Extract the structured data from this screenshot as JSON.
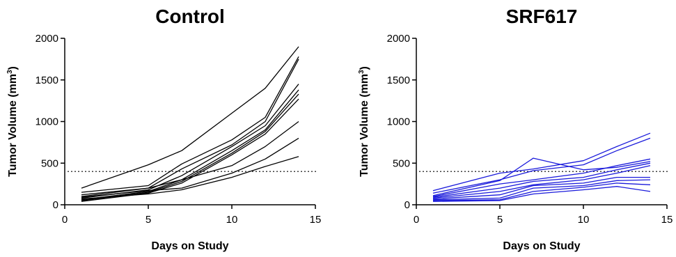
{
  "chart_data": [
    {
      "type": "line",
      "title": "Control",
      "xlabel": "Days on Study",
      "ylabel": "Tumor Volume (mm³)",
      "ylabel_base": "Tumor Volume (mm",
      "ylabel_sup": "3",
      "ylabel_end": ")",
      "xlim": [
        0,
        15
      ],
      "ylim": [
        0,
        2000
      ],
      "xticks": [
        0,
        5,
        10,
        15
      ],
      "yticks": [
        0,
        500,
        1000,
        1500,
        2000
      ],
      "reference_line": {
        "y": 400,
        "style": "dotted"
      },
      "line_color": "#000000",
      "legend": "none",
      "grid": false,
      "series": [
        {
          "x": [
            1,
            5,
            7,
            10,
            12,
            14
          ],
          "y": [
            200,
            480,
            650,
            1100,
            1400,
            1900
          ]
        },
        {
          "x": [
            1,
            5,
            7,
            10,
            12,
            14
          ],
          "y": [
            150,
            230,
            490,
            780,
            1050,
            1780
          ]
        },
        {
          "x": [
            1,
            5,
            7,
            10,
            12,
            14
          ],
          "y": [
            100,
            200,
            430,
            720,
            1000,
            1750
          ]
        },
        {
          "x": [
            1,
            5,
            7,
            10,
            12,
            14
          ],
          "y": [
            80,
            180,
            350,
            700,
            950,
            1450
          ]
        },
        {
          "x": [
            1,
            5,
            7,
            10,
            12,
            14
          ],
          "y": [
            60,
            160,
            300,
            650,
            900,
            1380
          ]
        },
        {
          "x": [
            1,
            5,
            7,
            10,
            12,
            14
          ],
          "y": [
            50,
            150,
            280,
            620,
            880,
            1330
          ]
        },
        {
          "x": [
            1,
            5,
            7,
            10,
            12,
            14
          ],
          "y": [
            40,
            140,
            260,
            600,
            850,
            1270
          ]
        },
        {
          "x": [
            1,
            5,
            7,
            10,
            12,
            14
          ],
          "y": [
            120,
            200,
            300,
            470,
            700,
            1000
          ]
        },
        {
          "x": [
            1,
            5,
            7,
            10,
            12,
            14
          ],
          "y": [
            90,
            170,
            200,
            380,
            550,
            800
          ]
        },
        {
          "x": [
            1,
            5,
            7,
            10,
            12,
            14
          ],
          "y": [
            70,
            130,
            180,
            330,
            460,
            580
          ]
        }
      ]
    },
    {
      "type": "line",
      "title": "SRF617",
      "xlabel": "Days on Study",
      "ylabel": "Tumor Volume (mm³)",
      "ylabel_base": "Tumor Volume (mm",
      "ylabel_sup": "3",
      "ylabel_end": ")",
      "xlim": [
        0,
        15
      ],
      "ylim": [
        0,
        2000
      ],
      "xticks": [
        0,
        5,
        10,
        15
      ],
      "yticks": [
        0,
        500,
        1000,
        1500,
        2000
      ],
      "reference_line": {
        "y": 400,
        "style": "dotted"
      },
      "line_color": "#1a1adb",
      "legend": "none",
      "grid": false,
      "series": [
        {
          "x": [
            1,
            5,
            7,
            10,
            12,
            14
          ],
          "y": [
            170,
            380,
            430,
            530,
            700,
            860
          ]
        },
        {
          "x": [
            1,
            5,
            7,
            10,
            12,
            14
          ],
          "y": [
            140,
            300,
            410,
            480,
            650,
            800
          ]
        },
        {
          "x": [
            1,
            5,
            7,
            10,
            12,
            14
          ],
          "y": [
            110,
            290,
            560,
            420,
            450,
            520
          ]
        },
        {
          "x": [
            1,
            5,
            7,
            10,
            12,
            14
          ],
          "y": [
            100,
            250,
            300,
            380,
            470,
            550
          ]
        },
        {
          "x": [
            1,
            5,
            7,
            10,
            12,
            14
          ],
          "y": [
            90,
            200,
            280,
            330,
            420,
            500
          ]
        },
        {
          "x": [
            1,
            5,
            7,
            10,
            12,
            14
          ],
          "y": [
            80,
            160,
            240,
            300,
            380,
            470
          ]
        },
        {
          "x": [
            1,
            5,
            7,
            10,
            12,
            14
          ],
          "y": [
            70,
            120,
            230,
            260,
            330,
            330
          ]
        },
        {
          "x": [
            1,
            5,
            7,
            10,
            12,
            14
          ],
          "y": [
            60,
            80,
            200,
            230,
            290,
            300
          ]
        },
        {
          "x": [
            1,
            5,
            7,
            10,
            12,
            14
          ],
          "y": [
            50,
            60,
            160,
            210,
            260,
            240
          ]
        },
        {
          "x": [
            1,
            5,
            7,
            10,
            12,
            14
          ],
          "y": [
            40,
            50,
            130,
            180,
            220,
            160
          ]
        }
      ]
    }
  ]
}
